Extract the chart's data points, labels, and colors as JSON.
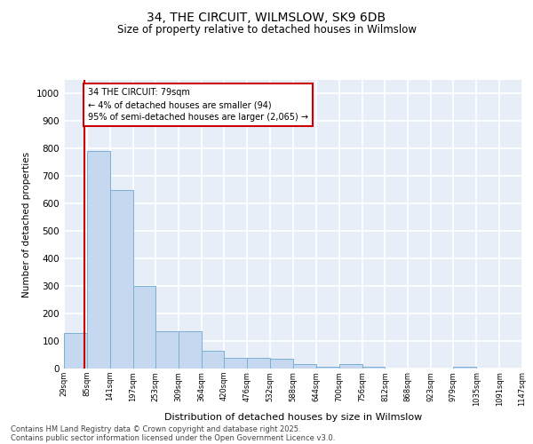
{
  "title": "34, THE CIRCUIT, WILMSLOW, SK9 6DB",
  "subtitle": "Size of property relative to detached houses in Wilmslow",
  "xlabel": "Distribution of detached houses by size in Wilmslow",
  "ylabel": "Number of detached properties",
  "bar_color": "#c5d8f0",
  "bar_edge_color": "#7aafd4",
  "background_color": "#e8eef8",
  "grid_color": "#ffffff",
  "bins": [
    29,
    85,
    141,
    197,
    253,
    309,
    364,
    420,
    476,
    532,
    588,
    644,
    700,
    756,
    812,
    868,
    923,
    979,
    1035,
    1091,
    1147
  ],
  "values": [
    130,
    790,
    650,
    300,
    135,
    135,
    65,
    40,
    40,
    35,
    15,
    5,
    15,
    5,
    0,
    0,
    0,
    5,
    0,
    0
  ],
  "property_size": 79,
  "vline_color": "#cc0000",
  "annotation_text": "34 THE CIRCUIT: 79sqm\n← 4% of detached houses are smaller (94)\n95% of semi-detached houses are larger (2,065) →",
  "annotation_box_color": "#cc0000",
  "ylim": [
    0,
    1050
  ],
  "yticks": [
    0,
    100,
    200,
    300,
    400,
    500,
    600,
    700,
    800,
    900,
    1000
  ],
  "footnote1": "Contains HM Land Registry data © Crown copyright and database right 2025.",
  "footnote2": "Contains public sector information licensed under the Open Government Licence v3.0."
}
